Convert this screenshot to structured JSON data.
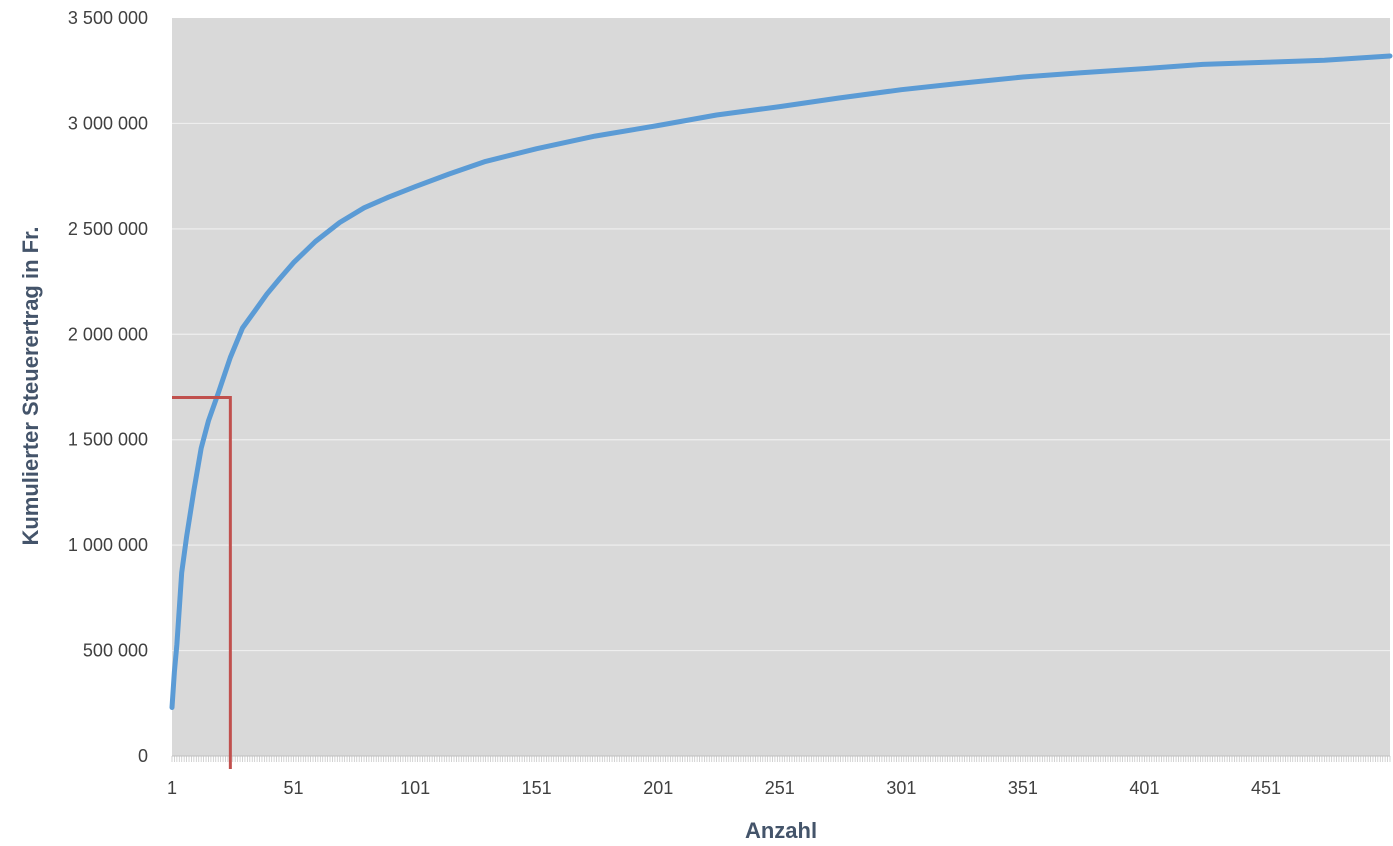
{
  "chart_data": {
    "type": "line",
    "xlabel": "Anzahl",
    "ylabel": "Kumulierter Steuerertrag in Fr.",
    "xlim": [
      1,
      502
    ],
    "ylim": [
      0,
      3500000
    ],
    "x_ticks": [
      1,
      51,
      101,
      151,
      201,
      251,
      301,
      351,
      401,
      451
    ],
    "y_ticks": [
      0,
      500000,
      1000000,
      1500000,
      2000000,
      2500000,
      3000000,
      3500000
    ],
    "y_tick_labels": [
      "0",
      "500 000",
      "1 000 000",
      "1 500 000",
      "2 000 000",
      "2 500 000",
      "3 000 000",
      "3 500 000"
    ],
    "grid": "horizontal",
    "legend": "none",
    "colors": {
      "plot_background": "#d9d9d9",
      "series": "#5b9bd5",
      "marker_line": "#c0504d"
    },
    "series": [
      {
        "x": [
          1,
          2,
          3,
          5,
          7,
          10,
          13,
          16,
          20,
          25,
          30,
          35,
          40,
          45,
          51,
          60,
          70,
          80,
          90,
          101,
          115,
          130,
          151,
          175,
          201,
          225,
          251,
          275,
          301,
          325,
          351,
          375,
          401,
          425,
          451,
          475,
          502
        ],
        "values": [
          230000,
          400000,
          530000,
          870000,
          1040000,
          1260000,
          1460000,
          1590000,
          1720000,
          1890000,
          2030000,
          2110000,
          2190000,
          2260000,
          2340000,
          2440000,
          2530000,
          2600000,
          2650000,
          2700000,
          2760000,
          2820000,
          2880000,
          2940000,
          2990000,
          3040000,
          3080000,
          3120000,
          3160000,
          3190000,
          3220000,
          3240000,
          3260000,
          3280000,
          3290000,
          3300000,
          3320000
        ]
      }
    ],
    "reference_line": {
      "x": 25,
      "y": 1700000
    }
  }
}
